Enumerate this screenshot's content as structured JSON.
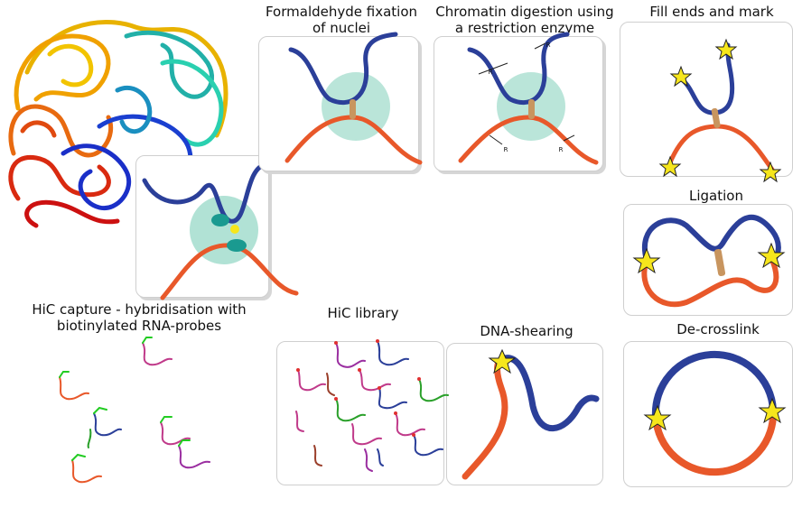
{
  "steps": {
    "fixation": "Formaldehyde fixation\nof nuclei",
    "digestion": "Chromatin digestion using\na restriction enzyme",
    "fill_ends": "Fill ends and mark\nwith biotin",
    "ligation": "Ligation",
    "decrosslink": "De-crosslink",
    "shearing": "DNA-shearing",
    "library": "HiC library",
    "capture": "HiC capture - hybridisation with\nbiotinylated RNA-probes"
  },
  "enzyme_site_label": "R",
  "colors": {
    "blue_strand": "#2b3f99",
    "orange_strand": "#e8582a",
    "nucleus": "#a9dfd0",
    "crosslink": "#c8955f",
    "star": "#f6e61c",
    "probe": "#22cc22"
  }
}
